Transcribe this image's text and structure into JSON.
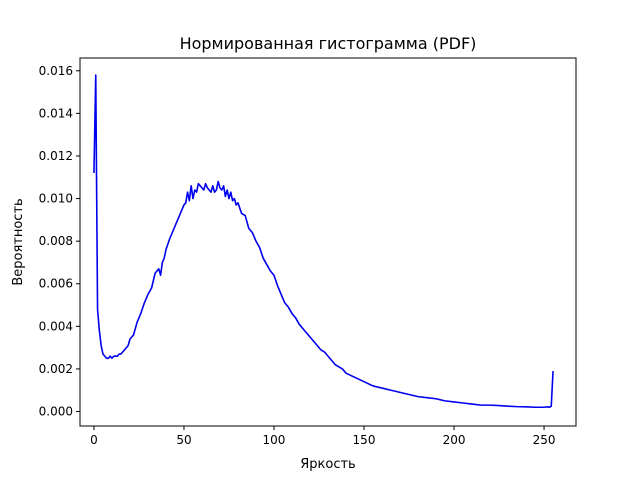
{
  "chart_data": {
    "type": "line",
    "title": "Нормированная гистограмма (PDF)",
    "xlabel": "Яркость",
    "ylabel": "Вероятность",
    "xlim": [
      -7.75,
      267.75
    ],
    "ylim": [
      -0.00068,
      0.0166
    ],
    "xticks": [
      0,
      50,
      100,
      150,
      200,
      250
    ],
    "xtick_labels": [
      "0",
      "50",
      "100",
      "150",
      "200",
      "250"
    ],
    "yticks": [
      0,
      0.002,
      0.004,
      0.006,
      0.008,
      0.01,
      0.012,
      0.014,
      0.016
    ],
    "ytick_labels": [
      "0.000",
      "0.002",
      "0.004",
      "0.006",
      "0.008",
      "0.010",
      "0.012",
      "0.014",
      "0.016"
    ],
    "grid": false,
    "series_color": "#0000ee",
    "series": [
      {
        "x": [
          0,
          1,
          2,
          3,
          4,
          5,
          6,
          7,
          8,
          9,
          10,
          11,
          12,
          13,
          14,
          15,
          16,
          17,
          18,
          19,
          20,
          22,
          24,
          26,
          28,
          30,
          32,
          34,
          36,
          37,
          38,
          39,
          40,
          42,
          44,
          46,
          48,
          50,
          51,
          52,
          53,
          54,
          55,
          56,
          57,
          58,
          59,
          60,
          61,
          62,
          63,
          64,
          65,
          66,
          67,
          68,
          69,
          70,
          71,
          72,
          73,
          74,
          75,
          76,
          77,
          78,
          79,
          80,
          82,
          84,
          86,
          88,
          90,
          92,
          94,
          96,
          98,
          100,
          102,
          104,
          106,
          108,
          110,
          112,
          114,
          116,
          118,
          120,
          122,
          124,
          126,
          128,
          130,
          132,
          134,
          136,
          138,
          140,
          145,
          150,
          155,
          160,
          165,
          170,
          175,
          180,
          185,
          190,
          195,
          200,
          205,
          210,
          215,
          220,
          225,
          230,
          235,
          240,
          245,
          250,
          252,
          253,
          254,
          255
        ],
        "y": [
          0.0112,
          0.0158,
          0.0048,
          0.0038,
          0.0031,
          0.0027,
          0.0026,
          0.0025,
          0.0025,
          0.0026,
          0.0025,
          0.0026,
          0.0026,
          0.0026,
          0.0027,
          0.0027,
          0.0028,
          0.0029,
          0.003,
          0.0031,
          0.0034,
          0.0036,
          0.0042,
          0.0046,
          0.0051,
          0.0055,
          0.0058,
          0.0065,
          0.0067,
          0.0064,
          0.007,
          0.0072,
          0.0076,
          0.0081,
          0.0085,
          0.0089,
          0.0093,
          0.0097,
          0.0098,
          0.0103,
          0.0099,
          0.0106,
          0.01,
          0.0104,
          0.0103,
          0.0107,
          0.0106,
          0.0105,
          0.0104,
          0.0107,
          0.0105,
          0.0104,
          0.0103,
          0.0106,
          0.0103,
          0.0104,
          0.0108,
          0.0105,
          0.0104,
          0.0106,
          0.0101,
          0.0104,
          0.01,
          0.0103,
          0.0099,
          0.01,
          0.0097,
          0.0098,
          0.0093,
          0.0092,
          0.0086,
          0.0084,
          0.008,
          0.0077,
          0.0072,
          0.0069,
          0.0066,
          0.0064,
          0.0059,
          0.0055,
          0.0051,
          0.0049,
          0.0046,
          0.0044,
          0.0041,
          0.0039,
          0.0037,
          0.0035,
          0.0033,
          0.0031,
          0.0029,
          0.0028,
          0.0026,
          0.0024,
          0.0022,
          0.0021,
          0.002,
          0.0018,
          0.0016,
          0.0014,
          0.0012,
          0.0011,
          0.001,
          0.0009,
          0.0008,
          0.0007,
          0.00065,
          0.0006,
          0.0005,
          0.00045,
          0.0004,
          0.00035,
          0.0003,
          0.0003,
          0.00028,
          0.00025,
          0.00023,
          0.00022,
          0.0002,
          0.0002,
          0.00022,
          0.0002,
          0.00025,
          0.0019
        ]
      }
    ]
  }
}
